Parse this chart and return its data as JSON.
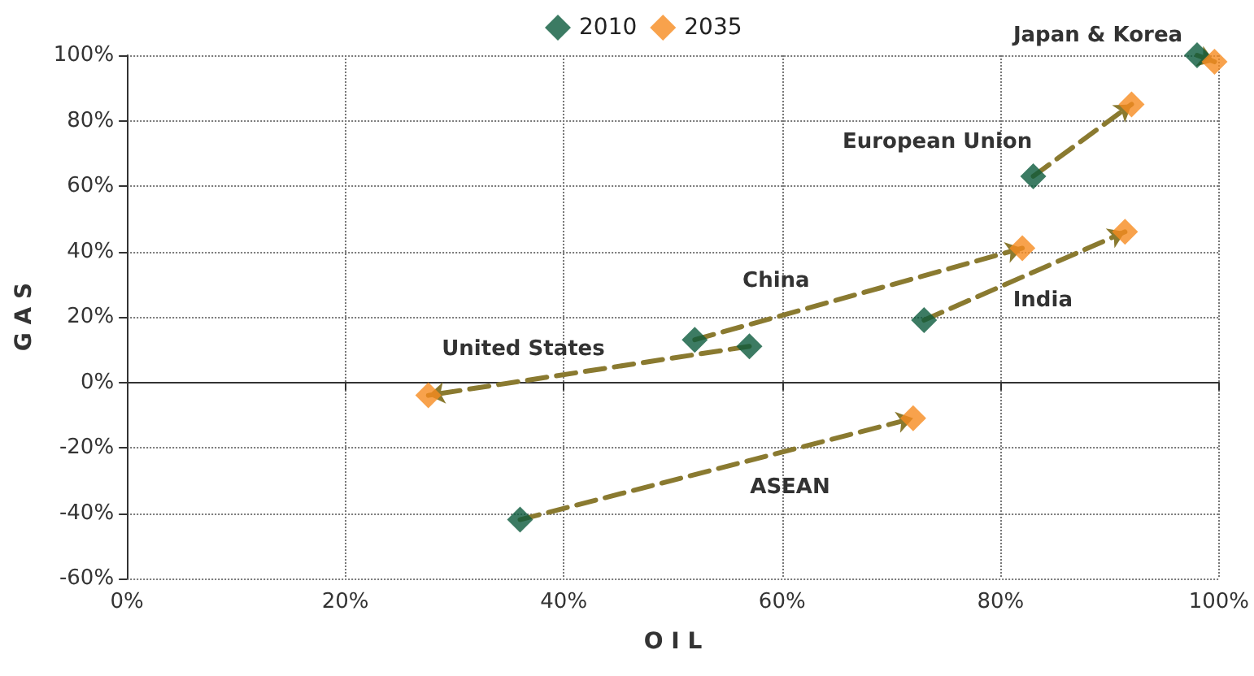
{
  "chart_data": {
    "type": "scatter",
    "xlabel": "O I L",
    "ylabel": "G A S",
    "series": [
      {
        "name": "2010",
        "color": "#0b5a3c",
        "x": [
          98,
          83,
          52,
          57,
          73,
          36
        ],
        "values": [
          100,
          63,
          13,
          11,
          19,
          -42
        ]
      },
      {
        "name": "2035",
        "color": "#f68b1f",
        "x": [
          99.6,
          92,
          82,
          27.6,
          91.4,
          72
        ],
        "values": [
          98,
          85,
          41,
          -4,
          46,
          -11
        ]
      }
    ],
    "annotations": [
      {
        "text": "Japan & Korea",
        "x": 98,
        "y": 100
      },
      {
        "text": "European Union",
        "x": 83,
        "y": 63
      },
      "China",
      "United States",
      "India",
      "ASEAN"
    ],
    "xlim": [
      0,
      100
    ],
    "xticks": [
      {
        "value": 0,
        "label": "0%"
      },
      {
        "value": 20,
        "label": "20%"
      },
      {
        "value": 40,
        "label": "40%"
      },
      {
        "value": 60,
        "label": "60%"
      },
      {
        "value": 80,
        "label": "80%"
      },
      {
        "value": 100,
        "label": "100%"
      }
    ],
    "ylim": [
      -60,
      100
    ],
    "yticks": [
      {
        "value": -60,
        "label": "-60%"
      },
      {
        "value": -40,
        "label": "-40%"
      },
      {
        "value": -20,
        "label": "-20%"
      },
      {
        "value": 0,
        "label": "0%"
      },
      {
        "value": 20,
        "label": "20%"
      },
      {
        "value": 40,
        "label": "40%"
      },
      {
        "value": 60,
        "label": "60%"
      },
      {
        "value": 80,
        "label": "80%"
      },
      {
        "value": 100,
        "label": "100%"
      }
    ],
    "grid": true,
    "legend": "top",
    "marker": "diamond"
  }
}
